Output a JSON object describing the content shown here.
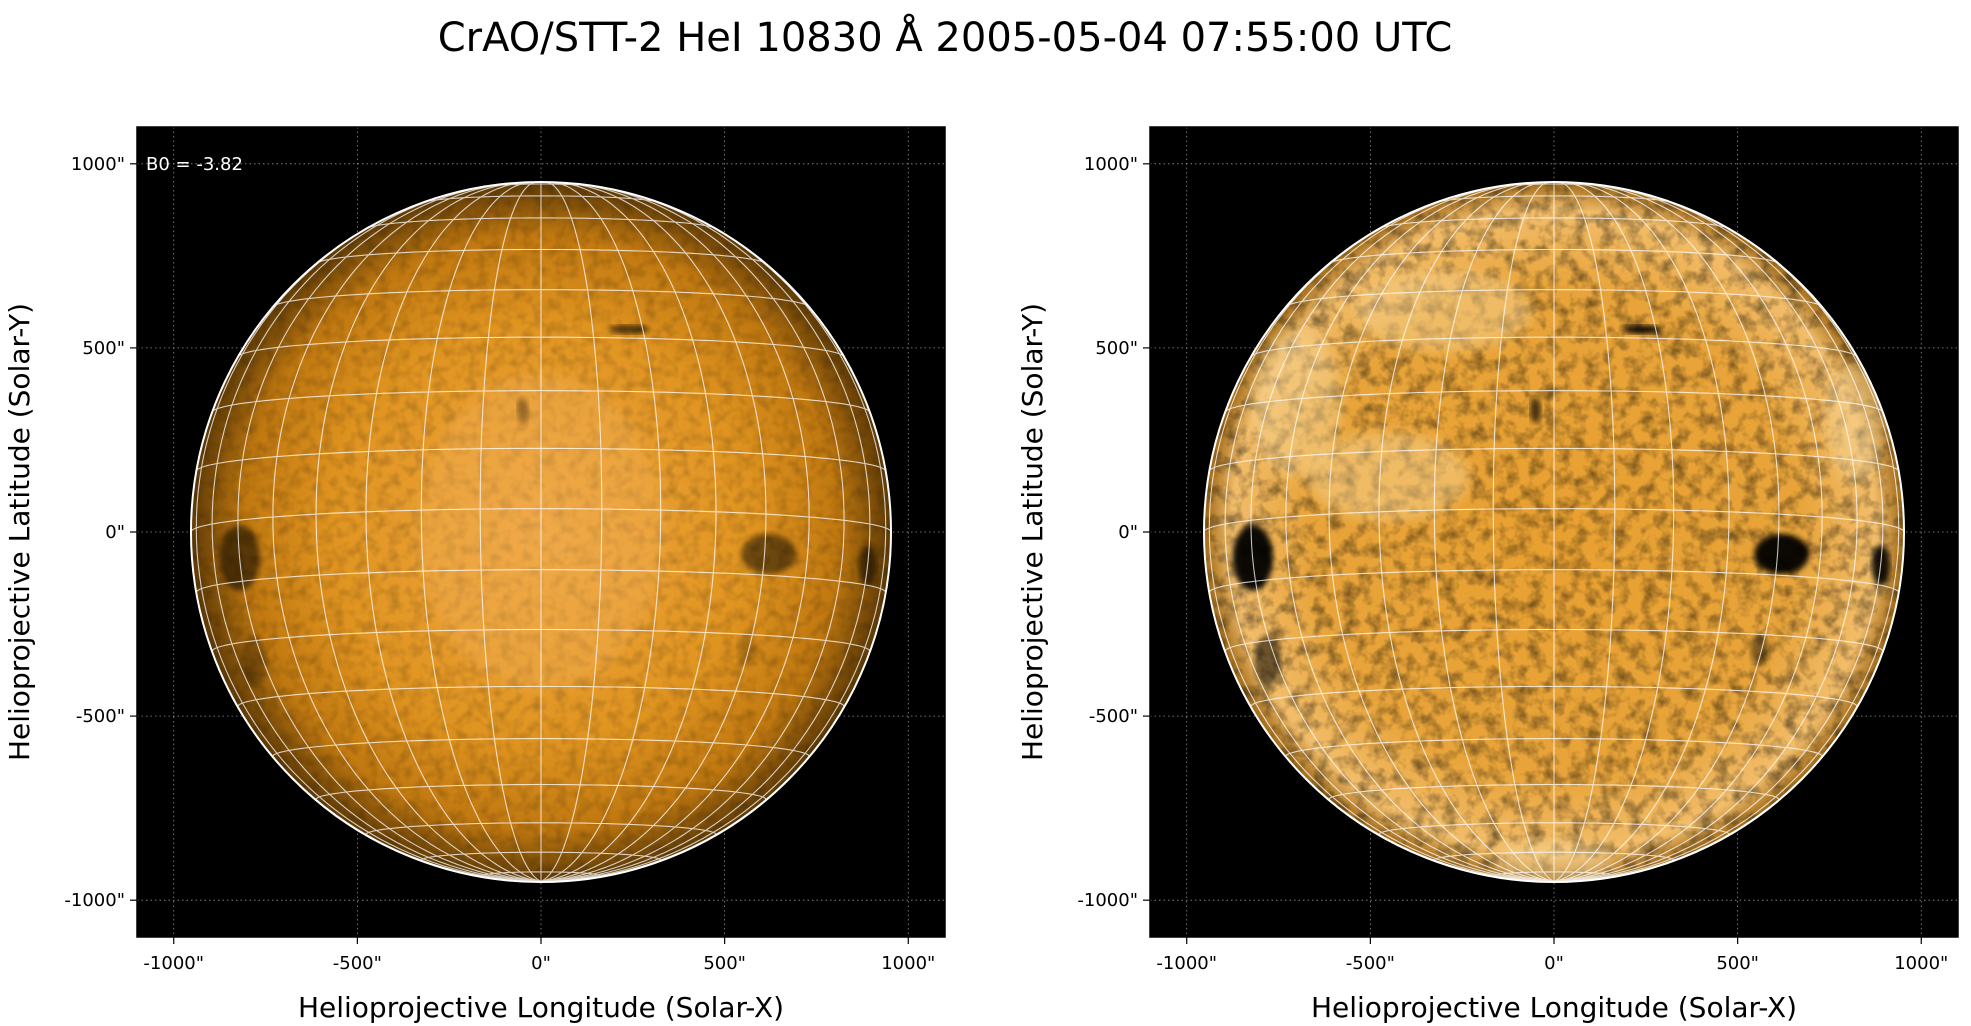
{
  "figure": {
    "title": "CrAO/STT-2 HeI 10830 Å 2005-05-04 07:55:00 UTC"
  },
  "panels": [
    {
      "id": "left",
      "xlabel": "Helioprojective Longitude (Solar-X)",
      "ylabel": "Helioprojective Latitude (Solar-Y)",
      "annotation": "B0 = -3.82",
      "xticks": [
        "-1000\"",
        "-500\"",
        "0\"",
        "500\"",
        "1000\""
      ],
      "yticks": [
        "1000\"",
        "500\"",
        "0\"",
        "-500\"",
        "-1000\""
      ],
      "contrast": "normal"
    },
    {
      "id": "right",
      "xlabel": "Helioprojective Longitude (Solar-X)",
      "ylabel": "Helioprojective Latitude (Solar-Y)",
      "annotation": "",
      "xticks": [
        "-1000\"",
        "-500\"",
        "0\"",
        "500\"",
        "1000\""
      ],
      "yticks": [
        "1000\"",
        "500\"",
        "0\"",
        "-500\"",
        "-1000\""
      ],
      "contrast": "enhanced"
    }
  ],
  "axis_range_arcsec": {
    "x": [
      -1100,
      1100
    ],
    "y": [
      -1100,
      1100
    ]
  },
  "tick_values_arcsec": [
    -1000,
    -500,
    0,
    500,
    1000
  ],
  "solar_radius_arcsec": 953,
  "b0_deg": -3.82,
  "colors": {
    "background": "#000000",
    "disk_center": "#f0a640",
    "disk_mid": "#d58a16",
    "disk_limb": "#6e4508",
    "grid": "#ffffff",
    "limb": "#ffffff"
  }
}
